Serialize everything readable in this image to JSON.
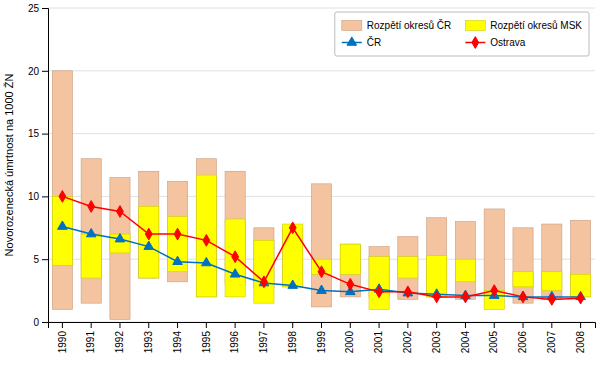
{
  "chart_data": {
    "type": "bar",
    "ylabel": "Novorozenecká úmrtnost na 1000 ŽN",
    "categories": [
      "1990",
      "1991",
      "1992",
      "1993",
      "1994",
      "1995",
      "1996",
      "1997",
      "1998",
      "1999",
      "2000",
      "2001",
      "2002",
      "2003",
      "2004",
      "2005",
      "2006",
      "2007",
      "2008"
    ],
    "series": [
      {
        "name": "Rozpětí okresů ČR",
        "type": "bar",
        "color": "#F4C4A0",
        "low": [
          1.0,
          1.5,
          0.2,
          3.5,
          3.2,
          2.0,
          3.0,
          2.7,
          2.8,
          1.2,
          2.0,
          2.0,
          1.8,
          2.0,
          1.8,
          2.0,
          1.5,
          1.8,
          2.0
        ],
        "high": [
          20.0,
          13.0,
          11.5,
          12.0,
          11.2,
          13.0,
          12.0,
          7.5,
          7.5,
          11.0,
          6.2,
          6.0,
          6.8,
          8.3,
          8.0,
          9.0,
          7.5,
          7.8,
          8.1
        ]
      },
      {
        "name": "Rozpětí okresů MSK",
        "type": "bar",
        "color": "#FFFF00",
        "low": [
          4.5,
          3.5,
          5.5,
          3.5,
          4.0,
          2.0,
          2.0,
          1.5,
          2.8,
          3.8,
          3.8,
          1.0,
          3.5,
          2.0,
          3.2,
          1.0,
          2.8,
          2.5,
          2.0
        ],
        "high": [
          10.0,
          7.0,
          7.0,
          9.2,
          8.4,
          11.7,
          8.2,
          6.5,
          7.8,
          5.0,
          6.2,
          5.2,
          5.2,
          5.3,
          5.0,
          2.5,
          4.0,
          4.0,
          3.8
        ]
      },
      {
        "name": "ČR",
        "type": "line",
        "color": "#0070C0",
        "marker": "triangle",
        "values": [
          7.6,
          7.0,
          6.6,
          6.0,
          4.8,
          4.7,
          3.8,
          3.1,
          2.9,
          2.5,
          2.4,
          2.6,
          2.3,
          2.2,
          2.1,
          2.1,
          2.0,
          2.0,
          2.0
        ]
      },
      {
        "name": "Ostrava",
        "type": "line",
        "color": "#FF0000",
        "marker": "diamond",
        "values": [
          10.0,
          9.2,
          8.8,
          7.0,
          7.0,
          6.5,
          5.2,
          3.2,
          7.5,
          4.0,
          3.0,
          2.4,
          2.4,
          2.0,
          2.0,
          2.5,
          2.0,
          1.8,
          1.9
        ]
      }
    ],
    "ylim": [
      0,
      25
    ],
    "yticks": [
      0,
      5,
      10,
      15,
      20,
      25
    ],
    "grid": true,
    "legend": "top-right"
  }
}
